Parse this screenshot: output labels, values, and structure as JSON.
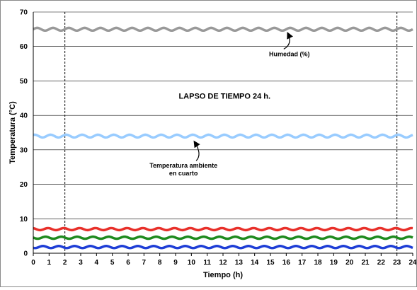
{
  "chart_data": {
    "type": "line",
    "title": "",
    "xlabel": "Tiempo  (h)",
    "ylabel": "Temperatura (°C)",
    "xlim": [
      0,
      24
    ],
    "ylim": [
      0,
      70
    ],
    "x_ticks": [
      "0",
      "1",
      "2",
      "3",
      "4",
      "5",
      "6",
      "7",
      "8",
      "9",
      "10",
      "11",
      "12",
      "13",
      "14",
      "15",
      "16",
      "17",
      "18",
      "19",
      "20",
      "21",
      "22",
      "23",
      "24"
    ],
    "y_ticks": [
      "0",
      "10",
      "20",
      "30",
      "40",
      "50",
      "60",
      "70"
    ],
    "grid": "horizontal",
    "vertical_markers": [
      2,
      23
    ],
    "center_label": "LAPSO DE TIEMPO  24 h.",
    "series": [
      {
        "color": "#999999",
        "y_mean": 65,
        "amplitude": 0.4,
        "period": 1
      },
      {
        "color": "#99ccff",
        "y_mean": 34,
        "amplitude": 0.4,
        "period": 1
      },
      {
        "color": "#e8302a",
        "y_mean": 7,
        "amplitude": 0.3,
        "period": 1
      },
      {
        "color": "#1e8a1e",
        "y_mean": 4.5,
        "amplitude": 0.3,
        "period": 1
      },
      {
        "color": "#1f3fd6",
        "y_mean": 1.8,
        "amplitude": 0.3,
        "period": 1
      }
    ],
    "annotations": [
      {
        "lines": [
          "Humedad (%)"
        ],
        "text_x": 16.2,
        "text_y": 57.2,
        "arrow_to_x": 16.1,
        "arrow_to_y": 63.8
      },
      {
        "lines": [
          "Temperatura ambiente",
          "en cuarto"
        ],
        "text_x": 9.5,
        "text_y": 24.8,
        "arrow_to_x": 10.2,
        "arrow_to_y": 32.3
      }
    ]
  }
}
